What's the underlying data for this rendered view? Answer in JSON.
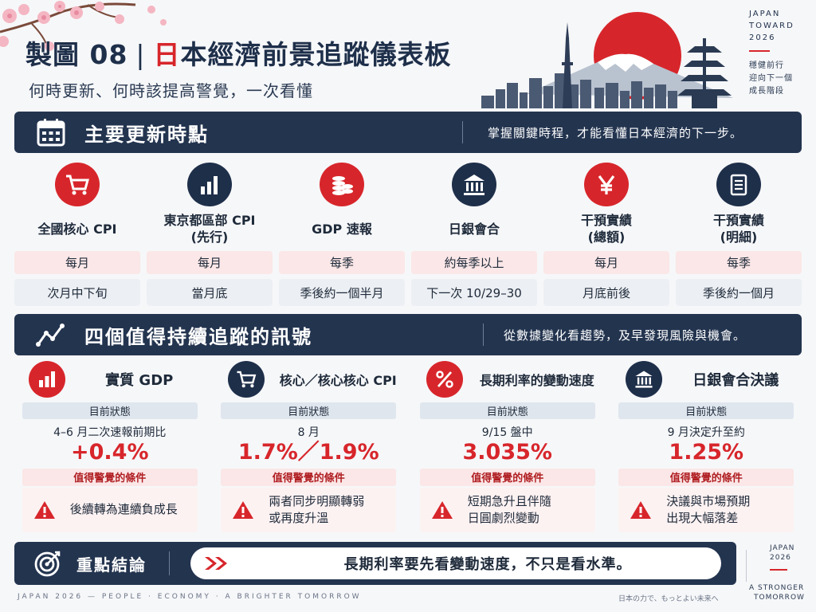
{
  "header": {
    "title_prefix": "製圖 08",
    "title_separator": "|",
    "title_highlight": "日",
    "title_rest": "本經濟前景追蹤儀表板",
    "subtitle": "何時更新、何時該提高警覺，一次看懂",
    "tag_lines": [
      "JAPAN",
      "TOWARD",
      "2026"
    ],
    "tag_sub_lines": [
      "穩健前行",
      "迎向下一個",
      "成長階段"
    ]
  },
  "section1": {
    "title": "主要更新時點",
    "note": "掌握關鍵時程，才能看懂日本經濟的下一步。",
    "icon": "calendar-icon"
  },
  "schedule": [
    {
      "name": "全國核心 CPI",
      "frequency": "每月",
      "timing": "次月中下旬",
      "icon": "cart-icon",
      "color": "red"
    },
    {
      "name": "東京都區部 CPI\n(先行)",
      "frequency": "每月",
      "timing": "當月底",
      "icon": "bar-chart-icon",
      "color": "navy"
    },
    {
      "name": "GDP 速報",
      "frequency": "每季",
      "timing": "季後約一個半月",
      "icon": "coins-icon",
      "color": "red"
    },
    {
      "name": "日銀會合",
      "frequency": "約每季以上",
      "timing": "下一次 10/29–30",
      "icon": "bank-icon",
      "color": "navy"
    },
    {
      "name": "干預實績\n(總額)",
      "frequency": "每月",
      "timing": "月底前後",
      "icon": "yen-icon",
      "color": "red"
    },
    {
      "name": "干預實績\n(明細)",
      "frequency": "每季",
      "timing": "季後約一個月",
      "icon": "document-icon",
      "color": "navy"
    }
  ],
  "section2": {
    "title": "四個值得持續追蹤的訊號",
    "note": "從數據變化看趨勢，及早發現風險與機會。",
    "icon": "trend-line-icon"
  },
  "signals": [
    {
      "title": "實質 GDP",
      "status_label": "目前狀態",
      "status_text": "4–6 月二次速報前期比",
      "value": "+0.4%",
      "condition_label": "值得警覺的條件",
      "condition": "後續轉為連續負成長",
      "icon": "bar-chart-icon",
      "color": "red"
    },
    {
      "title": "核心／核心核心 CPI",
      "status_label": "目前狀態",
      "status_text": "8 月",
      "value": "1.7%／1.9%",
      "condition_label": "值得警覺的條件",
      "condition": "兩者同步明顯轉弱\n或再度升溫",
      "icon": "cart-icon",
      "color": "navy"
    },
    {
      "title": "長期利率的變動速度",
      "status_label": "目前狀態",
      "status_text": "9/15 盤中",
      "value": "3.035%",
      "condition_label": "值得警覺的條件",
      "condition": "短期急升且伴隨\n日圓劇烈變動",
      "icon": "percent-icon",
      "color": "red"
    },
    {
      "title": "日銀會合決議",
      "status_label": "目前狀態",
      "status_text": "9 月決定升至約",
      "value": "1.25%",
      "condition_label": "值得警覺的條件",
      "condition": "決議與市場預期\n出現大幅落差",
      "icon": "bank-icon",
      "color": "navy"
    }
  ],
  "conclusion": {
    "title": "重點結論",
    "text": "長期利率要先看變動速度，不只是看水準。",
    "icon": "target-icon"
  },
  "corner": {
    "lines_top": [
      "JAPAN",
      "2026"
    ],
    "lines_bottom": [
      "A STRONGER",
      "TOMORROW"
    ]
  },
  "footer": {
    "left": "JAPAN 2026 — PEOPLE · ECONOMY · A BRIGHTER TOMORROW",
    "right": "日本の力で、もっとよい未来へ"
  },
  "colors": {
    "navy": "#23344f",
    "red": "#d7262b",
    "pink": "#fbe7e7",
    "gray": "#eceff3"
  }
}
